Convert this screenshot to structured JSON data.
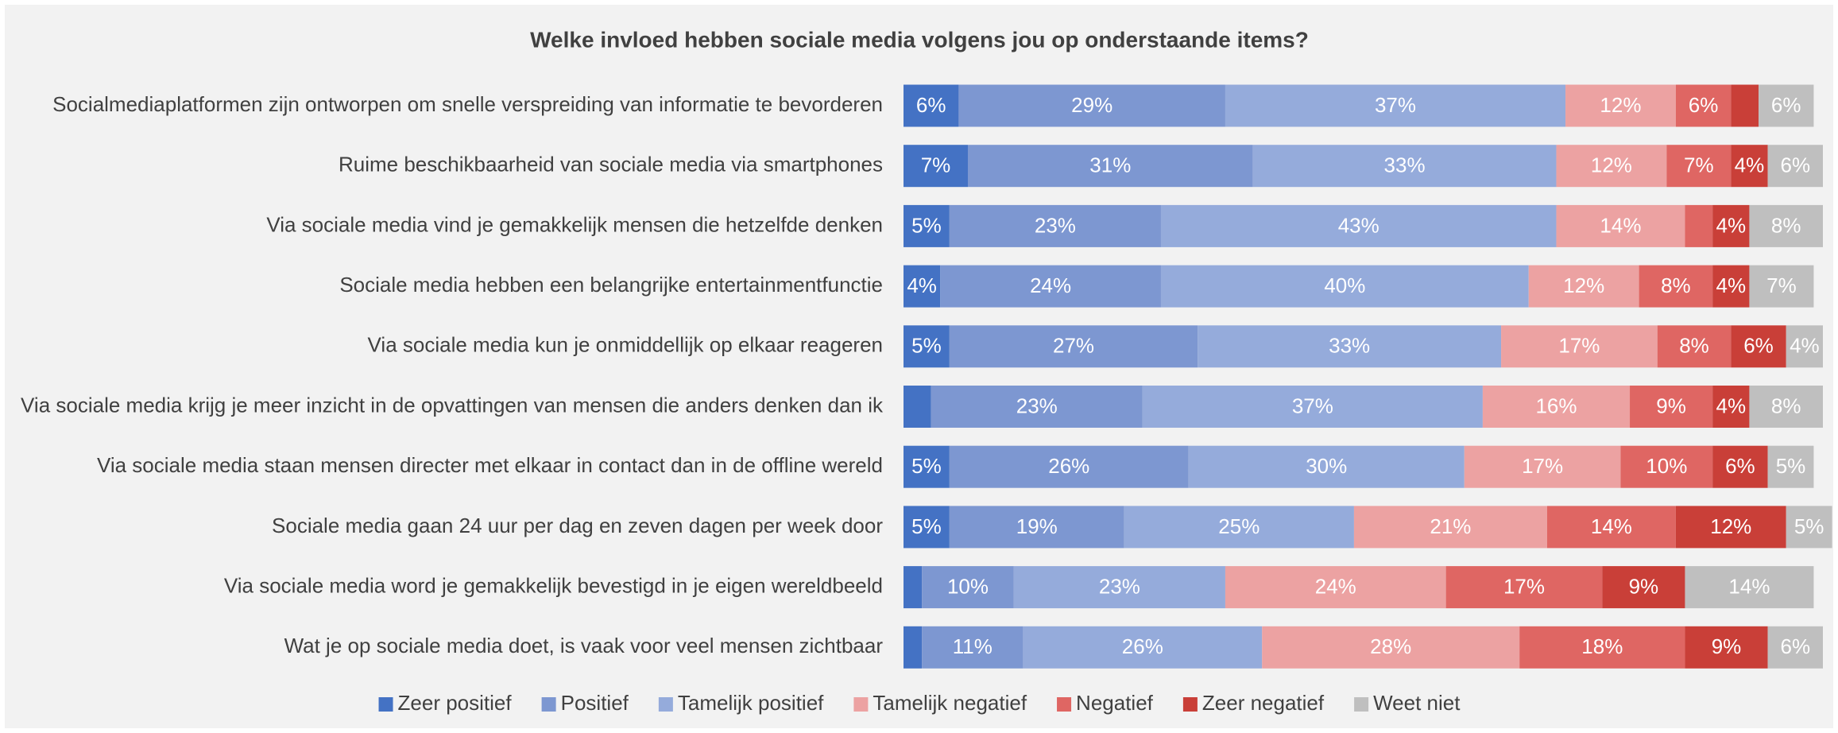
{
  "chart_data": {
    "type": "bar",
    "orientation": "horizontal",
    "stacked": true,
    "title": "Welke invloed hebben sociale media volgens jou op onderstaande items?",
    "categories": [
      "Socialmediaplatformen zijn ontworpen om snelle verspreiding van informatie te bevorderen",
      "Ruime beschikbaarheid van sociale media via smartphones",
      "Via sociale media vind je gemakkelijk mensen die hetzelfde denken",
      "Sociale media hebben een belangrijke entertainmentfunctie",
      "Via sociale media kun je onmiddellijk op elkaar reageren",
      "Via sociale media krijg je meer inzicht in de opvattingen van mensen die anders denken dan ik",
      "Via sociale media staan mensen directer met elkaar in contact dan in de offline wereld",
      "Sociale media gaan 24 uur per dag en zeven dagen per week door",
      "Via sociale media word je gemakkelijk bevestigd in je eigen wereldbeeld",
      "Wat je op sociale media doet, is vaak voor veel mensen zichtbaar"
    ],
    "xlim": [
      0,
      100
    ],
    "legend": "bottom",
    "series": [
      {
        "name": "Zeer positief",
        "color": "#4472c4",
        "values": [
          6,
          7,
          5,
          4,
          5,
          3,
          5,
          5,
          2,
          2
        ],
        "value_labels": [
          "6%",
          "7%",
          "5%",
          "4%",
          "5%",
          null,
          "5%",
          "5%",
          null,
          null
        ]
      },
      {
        "name": "Positief",
        "color": "#7d97d1",
        "values": [
          29,
          31,
          23,
          24,
          27,
          23,
          26,
          19,
          10,
          11
        ],
        "value_labels": [
          "29%",
          "31%",
          "23%",
          "24%",
          "27%",
          "23%",
          "26%",
          "19%",
          "10%",
          "11%"
        ]
      },
      {
        "name": "Tamelijk positief",
        "color": "#95abdb",
        "values": [
          37,
          33,
          43,
          40,
          33,
          37,
          30,
          25,
          23,
          26
        ],
        "value_labels": [
          "37%",
          "33%",
          "43%",
          "40%",
          "33%",
          "37%",
          "30%",
          "25%",
          "23%",
          "26%"
        ]
      },
      {
        "name": "Tamelijk negatief",
        "color": "#eca2a2",
        "values": [
          12,
          12,
          14,
          12,
          17,
          16,
          17,
          21,
          24,
          28
        ],
        "value_labels": [
          "12%",
          "12%",
          "14%",
          "12%",
          "17%",
          "16%",
          "17%",
          "21%",
          "24%",
          "28%"
        ]
      },
      {
        "name": "Negatief",
        "color": "#df6663",
        "values": [
          6,
          7,
          3,
          8,
          8,
          9,
          10,
          14,
          17,
          18
        ],
        "value_labels": [
          "6%",
          "7%",
          null,
          "8%",
          "8%",
          "9%",
          "10%",
          "14%",
          "17%",
          "18%"
        ]
      },
      {
        "name": "Zeer negatief",
        "color": "#c93f38",
        "values": [
          3,
          4,
          4,
          4,
          6,
          4,
          6,
          12,
          9,
          9
        ],
        "value_labels": [
          null,
          "4%",
          "4%",
          "4%",
          "6%",
          "4%",
          "6%",
          "12%",
          "9%",
          "9%"
        ]
      },
      {
        "name": "Weet niet",
        "color": "#bfbfbf",
        "values": [
          6,
          6,
          8,
          7,
          4,
          8,
          5,
          5,
          14,
          6
        ],
        "value_labels": [
          "6%",
          "6%",
          "8%",
          "7%",
          "4%",
          "8%",
          "5%",
          "5%",
          "14%",
          "6%"
        ]
      }
    ]
  }
}
